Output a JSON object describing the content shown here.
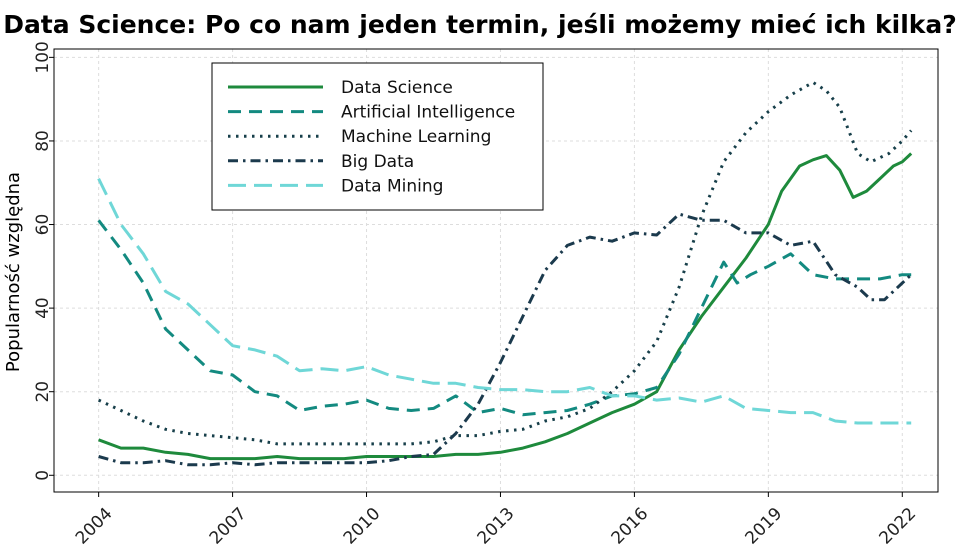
{
  "chart_data": {
    "type": "line",
    "title": "Data Science: Po co nam jeden termin, jeśli możemy mieć ich kilka?",
    "xlabel": "",
    "ylabel": "Popularność względna",
    "xlim": [
      2003.0,
      2022.8
    ],
    "ylim": [
      -4,
      102
    ],
    "xticks": [
      2004,
      2007,
      2010,
      2013,
      2016,
      2019,
      2022
    ],
    "yticks": [
      0,
      20,
      40,
      60,
      80,
      100
    ],
    "grid": true,
    "legend_position": "top-left",
    "series": [
      {
        "name": "Data Science",
        "color": "#1e8a3c",
        "dash": "solid",
        "x": [
          2004.0,
          2004.5,
          2005.0,
          2005.5,
          2006.0,
          2006.5,
          2007.0,
          2007.5,
          2008.0,
          2008.5,
          2009.0,
          2009.5,
          2010.0,
          2010.5,
          2011.0,
          2011.5,
          2012.0,
          2012.5,
          2013.0,
          2013.5,
          2014.0,
          2014.5,
          2015.0,
          2015.5,
          2016.0,
          2016.5,
          2017.0,
          2017.5,
          2018.0,
          2018.5,
          2019.0,
          2019.3,
          2019.7,
          2020.0,
          2020.3,
          2020.6,
          2020.9,
          2021.2,
          2021.5,
          2021.8,
          2022.0,
          2022.2
        ],
        "y": [
          8.5,
          6.5,
          6.5,
          5.5,
          5,
          4,
          4,
          4,
          4.5,
          4,
          4,
          4,
          4.5,
          4.5,
          4.5,
          4.5,
          5,
          5,
          5.5,
          6.5,
          8,
          10,
          12.5,
          15,
          17,
          20,
          30,
          38,
          45,
          52,
          60,
          68,
          74,
          75.5,
          76.5,
          73,
          66.5,
          68,
          71,
          74,
          75,
          77
        ]
      },
      {
        "name": "Artificial Intelligence",
        "color": "#138a80",
        "dash": "long",
        "x": [
          2004.0,
          2004.5,
          2005.0,
          2005.5,
          2006.0,
          2006.5,
          2007.0,
          2007.5,
          2008.0,
          2008.5,
          2009.0,
          2009.5,
          2010.0,
          2010.5,
          2011.0,
          2011.5,
          2012.0,
          2012.5,
          2013.0,
          2013.5,
          2014.0,
          2014.5,
          2015.0,
          2015.5,
          2016.0,
          2016.5,
          2017.0,
          2017.5,
          2018.0,
          2018.3,
          2018.6,
          2019.0,
          2019.5,
          2020.0,
          2020.5,
          2021.0,
          2021.5,
          2022.0,
          2022.2
        ],
        "y": [
          61,
          54,
          46,
          35,
          30,
          25,
          24,
          20,
          19,
          15.5,
          16.5,
          17,
          18,
          16,
          15.5,
          16,
          19,
          15,
          16,
          14.5,
          15,
          15.5,
          17,
          19,
          19.5,
          21,
          29,
          40,
          51,
          46,
          48,
          50,
          53,
          48,
          47,
          47,
          47,
          48,
          48
        ]
      },
      {
        "name": "Machine Learning",
        "color": "#173f4a",
        "dash": "dot",
        "x": [
          2004.0,
          2004.5,
          2005.0,
          2005.5,
          2006.0,
          2006.5,
          2007.0,
          2007.5,
          2008.0,
          2008.5,
          2009.0,
          2009.5,
          2010.0,
          2010.5,
          2011.0,
          2011.5,
          2012.0,
          2012.5,
          2013.0,
          2013.5,
          2014.0,
          2014.5,
          2015.0,
          2015.5,
          2016.0,
          2016.5,
          2017.0,
          2017.5,
          2018.0,
          2018.5,
          2019.0,
          2019.5,
          2020.0,
          2020.3,
          2020.6,
          2021.0,
          2021.3,
          2021.7,
          2022.0,
          2022.2
        ],
        "y": [
          18,
          15.5,
          13,
          11,
          10,
          9.5,
          9,
          8.5,
          7.5,
          7.5,
          7.5,
          7.5,
          7.5,
          7.5,
          7.5,
          8,
          9.5,
          9.5,
          10.5,
          11,
          13,
          14,
          16,
          20,
          25,
          32,
          45,
          62,
          75,
          82,
          87,
          91,
          94,
          92,
          88,
          77,
          75,
          77,
          80,
          82.5
        ]
      },
      {
        "name": "Big Data",
        "color": "#1b3a4d",
        "dash": "dashdot",
        "x": [
          2004.0,
          2004.5,
          2005.0,
          2005.5,
          2006.0,
          2006.5,
          2007.0,
          2007.5,
          2008.0,
          2008.5,
          2009.0,
          2009.5,
          2010.0,
          2010.5,
          2011.0,
          2011.5,
          2012.0,
          2012.5,
          2013.0,
          2013.5,
          2014.0,
          2014.5,
          2015.0,
          2015.5,
          2016.0,
          2016.5,
          2017.0,
          2017.5,
          2018.0,
          2018.5,
          2019.0,
          2019.5,
          2020.0,
          2020.5,
          2021.0,
          2021.3,
          2021.6,
          2022.0,
          2022.2
        ],
        "y": [
          4.5,
          3,
          3,
          3.5,
          2.5,
          2.5,
          3,
          2.5,
          3,
          3,
          3,
          3,
          3,
          3.5,
          4.5,
          5,
          10,
          17,
          27,
          38,
          49,
          55,
          57,
          56,
          58,
          57.5,
          62.5,
          61,
          61,
          58,
          58,
          55,
          56,
          48,
          45,
          42,
          42,
          46,
          48
        ]
      },
      {
        "name": "Data Mining",
        "color": "#6fd7d7",
        "dash": "longgap",
        "x": [
          2004.0,
          2004.5,
          2005.0,
          2005.5,
          2006.0,
          2006.5,
          2007.0,
          2007.5,
          2008.0,
          2008.5,
          2009.0,
          2009.5,
          2010.0,
          2010.5,
          2011.0,
          2011.5,
          2012.0,
          2012.5,
          2013.0,
          2013.5,
          2014.0,
          2014.5,
          2015.0,
          2015.5,
          2016.0,
          2016.5,
          2017.0,
          2017.5,
          2018.0,
          2018.5,
          2019.0,
          2019.5,
          2020.0,
          2020.5,
          2021.0,
          2021.5,
          2022.0,
          2022.2
        ],
        "y": [
          71,
          60,
          53,
          44,
          41,
          36,
          31,
          30,
          28.5,
          25,
          25.5,
          25,
          26,
          24,
          23,
          22,
          22,
          21,
          20.5,
          20.5,
          20,
          20,
          21,
          19,
          19,
          18,
          18.5,
          17.5,
          19,
          16,
          15.5,
          15,
          15,
          13,
          12.5,
          12.5,
          12.5,
          12.5
        ]
      }
    ]
  }
}
